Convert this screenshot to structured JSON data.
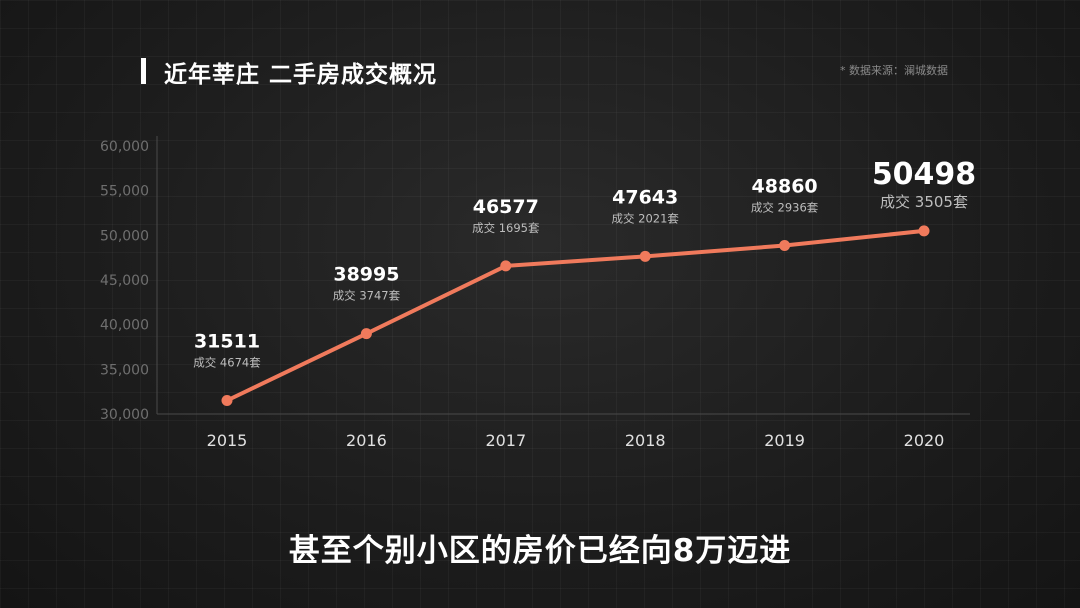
{
  "header": {
    "title": "近年莘庄 二手房成交概况",
    "source": "* 数据来源：澜城数据"
  },
  "caption": "甚至个别小区的房价已经向8万迈进",
  "chart_data": {
    "type": "line",
    "title": "近年莘庄 二手房成交概况",
    "x": [
      "2015",
      "2016",
      "2017",
      "2018",
      "2019",
      "2020"
    ],
    "series": [
      {
        "values": [
          31511,
          38995,
          46577,
          47643,
          48860,
          50498
        ]
      }
    ],
    "data_labels": [
      "31511",
      "38995",
      "46577",
      "47643",
      "48860",
      "50498"
    ],
    "secondary_labels": [
      "成交 4674套",
      "成交 3747套",
      "成交 1695套",
      "成交 2021套",
      "成交 2936套",
      "成交 3505套"
    ],
    "y_ticks": [
      "30,000",
      "35,000",
      "40,000",
      "45,000",
      "50,000",
      "55,000",
      "60,000"
    ],
    "y_tick_values": [
      30000,
      35000,
      40000,
      45000,
      50000,
      55000,
      60000
    ],
    "ylim": [
      30000,
      60000
    ],
    "line_color": "#f07a5c",
    "grid": false
  }
}
